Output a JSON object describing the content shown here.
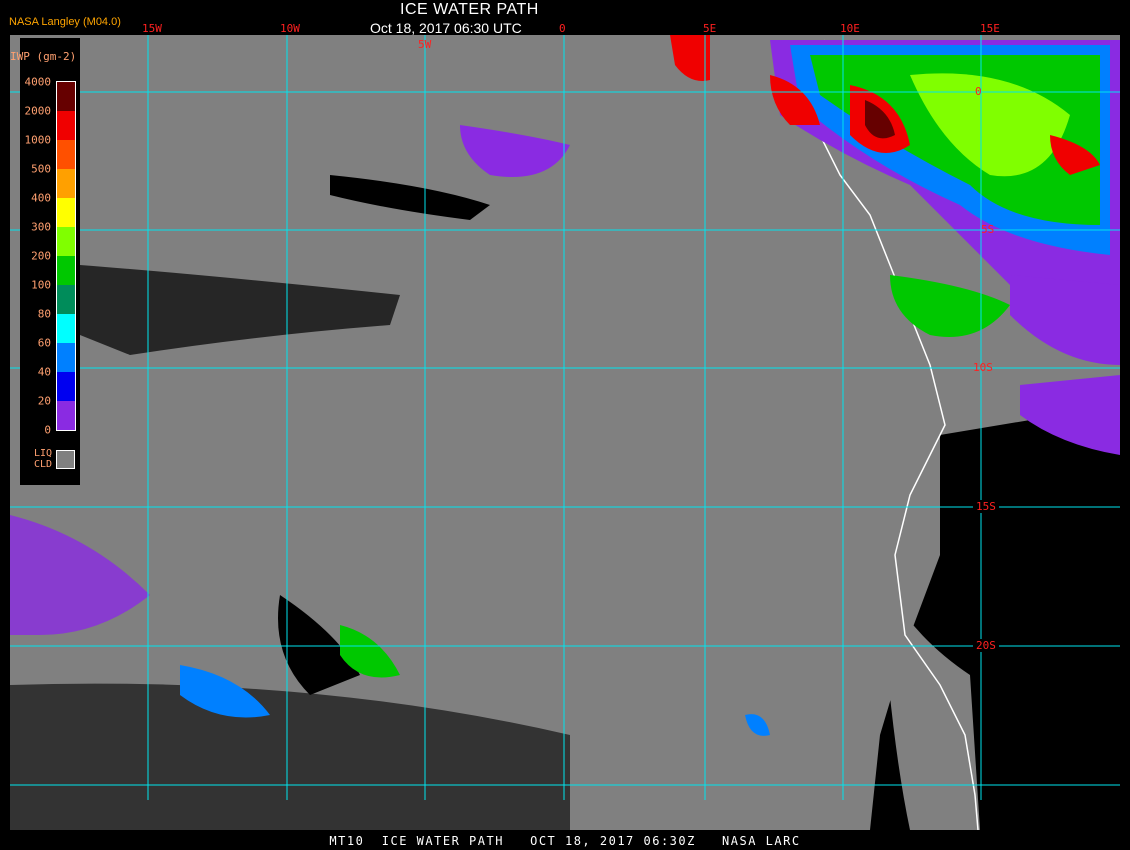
{
  "header": {
    "org_label": "NASA Langley (M04.0)",
    "title": "ICE WATER PATH",
    "datetime": "Oct 18, 2017 06:30 UTC"
  },
  "grid": {
    "lon_labels": [
      "15W",
      "10W",
      "5W",
      "0",
      "5E",
      "10E",
      "15E"
    ],
    "lat_labels": [
      "0",
      "5S",
      "10S",
      "15S",
      "20S"
    ],
    "line_color": "#00e5ee"
  },
  "legend": {
    "title": "IWP (gm-2)",
    "labels": [
      "4000",
      "2000",
      "1000",
      "500",
      "400",
      "300",
      "200",
      "100",
      "80",
      "60",
      "40",
      "20",
      "0"
    ],
    "colors": [
      "#660000",
      "#f00000",
      "#ff5000",
      "#ffa000",
      "#ffff00",
      "#80ff00",
      "#00c800",
      "#008c5a",
      "#00ffff",
      "#0080ff",
      "#0000f0",
      "#8a2be2"
    ],
    "liq_cld_line1": "LIQ",
    "liq_cld_line2": "CLD",
    "liq_cld_color": "#808080",
    "clear_color": "#000000"
  },
  "footer": {
    "caption": "MT10  ICE WATER PATH   OCT 18, 2017 06:30Z   NASA LARC"
  }
}
